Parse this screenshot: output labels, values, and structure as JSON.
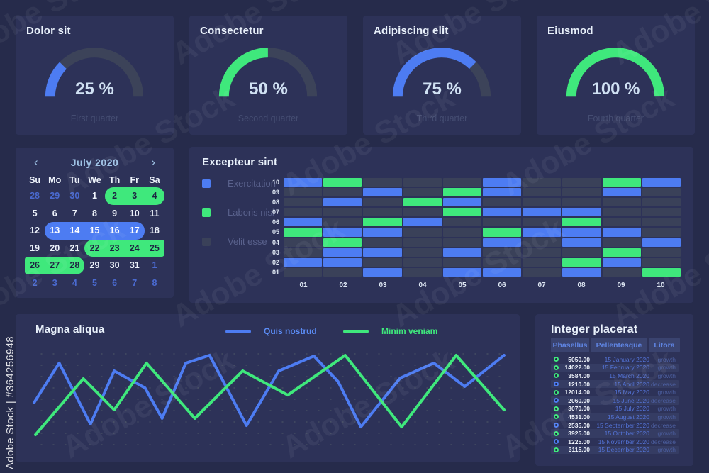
{
  "watermark": {
    "ribbon": "Adobe Stock | #364256948",
    "tile": "Adobe Stock"
  },
  "colors": {
    "blue": "#4d7cf2",
    "green": "#3fe87c",
    "gray": "#3a4159"
  },
  "gauges": [
    {
      "title": "Dolor sit",
      "percent": 25,
      "label": "25 %",
      "caption": "First quarter",
      "color": "#4d7cf2"
    },
    {
      "title": "Consectetur",
      "percent": 50,
      "label": "50 %",
      "caption": "Second quarter",
      "color": "#3fe87c"
    },
    {
      "title": "Adipiscing elit",
      "percent": 75,
      "label": "75 %",
      "caption": "Third quarter",
      "color": "#4d7cf2"
    },
    {
      "title": "Eiusmod",
      "percent": 100,
      "label": "100 %",
      "caption": "Fourth quarter",
      "color": "#3fe87c"
    }
  ],
  "calendar": {
    "month_label": "July 2020",
    "prev_icon": "‹",
    "next_icon": "›",
    "day_names": [
      "Su",
      "Mo",
      "Tu",
      "We",
      "Th",
      "Fr",
      "Sa"
    ],
    "weeks": [
      [
        {
          "v": "28",
          "k": "m"
        },
        {
          "v": "29",
          "k": "m"
        },
        {
          "v": "30",
          "k": "m"
        },
        {
          "v": "1",
          "k": "c"
        },
        {
          "v": "2",
          "k": "gs"
        },
        {
          "v": "3",
          "k": "gm"
        },
        {
          "v": "4",
          "k": "ge"
        }
      ],
      [
        {
          "v": "5",
          "k": "c"
        },
        {
          "v": "6",
          "k": "c"
        },
        {
          "v": "7",
          "k": "c"
        },
        {
          "v": "8",
          "k": "c"
        },
        {
          "v": "9",
          "k": "c"
        },
        {
          "v": "10",
          "k": "c"
        },
        {
          "v": "11",
          "k": "c"
        }
      ],
      [
        {
          "v": "12",
          "k": "c"
        },
        {
          "v": "13",
          "k": "bs"
        },
        {
          "v": "14",
          "k": "bm"
        },
        {
          "v": "15",
          "k": "bm"
        },
        {
          "v": "16",
          "k": "bm"
        },
        {
          "v": "17",
          "k": "be"
        },
        {
          "v": "18",
          "k": "c"
        }
      ],
      [
        {
          "v": "19",
          "k": "c"
        },
        {
          "v": "20",
          "k": "c"
        },
        {
          "v": "21",
          "k": "c"
        },
        {
          "v": "22",
          "k": "gs"
        },
        {
          "v": "23",
          "k": "gm"
        },
        {
          "v": "24",
          "k": "gm"
        },
        {
          "v": "25",
          "k": "gef"
        }
      ],
      [
        {
          "v": "26",
          "k": "gsf"
        },
        {
          "v": "27",
          "k": "gm"
        },
        {
          "v": "28",
          "k": "ge"
        },
        {
          "v": "29",
          "k": "c"
        },
        {
          "v": "30",
          "k": "c"
        },
        {
          "v": "31",
          "k": "c"
        },
        {
          "v": "1",
          "k": "m"
        }
      ],
      [
        {
          "v": "2",
          "k": "m"
        },
        {
          "v": "3",
          "k": "m"
        },
        {
          "v": "4",
          "k": "m"
        },
        {
          "v": "5",
          "k": "m"
        },
        {
          "v": "6",
          "k": "m"
        },
        {
          "v": "7",
          "k": "m"
        },
        {
          "v": "8",
          "k": "m"
        }
      ]
    ]
  },
  "gantt": {
    "title": "Excepteur sint",
    "legend": [
      {
        "label": "Exercitation",
        "color": "#4d7cf2"
      },
      {
        "label": "Laboris nisi",
        "color": "#3fe87c"
      },
      {
        "label": "Velit esse",
        "color": "#3a4159"
      }
    ],
    "row_labels": [
      "10",
      "09",
      "08",
      "07",
      "06",
      "05",
      "04",
      "03",
      "02",
      "01"
    ],
    "col_labels": [
      "01",
      "02",
      "03",
      "04",
      "05",
      "06",
      "07",
      "08",
      "09",
      "10"
    ],
    "cells": [
      [
        "b",
        "g",
        "x",
        "x",
        "x",
        "b",
        "x",
        "x",
        "g",
        "b"
      ],
      [
        "x",
        "x",
        "b",
        "x",
        "g",
        "b",
        "x",
        "x",
        "b",
        "x"
      ],
      [
        "x",
        "b",
        "x",
        "g",
        "b",
        "x",
        "x",
        "x",
        "x",
        "x"
      ],
      [
        "x",
        "x",
        "x",
        "x",
        "g",
        "b",
        "b",
        "b",
        "x",
        "x"
      ],
      [
        "b",
        "x",
        "g",
        "b",
        "x",
        "x",
        "x",
        "g",
        "x",
        "x"
      ],
      [
        "g",
        "b",
        "b",
        "x",
        "x",
        "g",
        "b",
        "b",
        "b",
        "x"
      ],
      [
        "x",
        "g",
        "x",
        "x",
        "x",
        "b",
        "x",
        "b",
        "x",
        "b"
      ],
      [
        "x",
        "b",
        "b",
        "x",
        "b",
        "x",
        "x",
        "x",
        "g",
        "x"
      ],
      [
        "b",
        "b",
        "x",
        "x",
        "x",
        "x",
        "x",
        "g",
        "b",
        "x"
      ],
      [
        "x",
        "x",
        "b",
        "x",
        "b",
        "b",
        "x",
        "b",
        "x",
        "g"
      ]
    ]
  },
  "line_chart": {
    "title": "Magna aliqua",
    "legend": [
      {
        "label": "Quis nostrud",
        "color": "#4d7cf2",
        "text_color": "#5b8cf5"
      },
      {
        "label": "Minim veniam",
        "color": "#3fe87c",
        "text_color": "#3fe87c"
      }
    ],
    "series": [
      {
        "name": "Quis nostrud",
        "color": "#4d7cf2",
        "points": [
          [
            0,
            53.5
          ],
          [
            5.3,
            17.4
          ],
          [
            11.9,
            72.9
          ],
          [
            16.9,
            24.5
          ],
          [
            23.4,
            40
          ],
          [
            27,
            67.7
          ],
          [
            32,
            17.4
          ],
          [
            37,
            10.3
          ],
          [
            44.8,
            74.2
          ],
          [
            51.6,
            24.5
          ],
          [
            59,
            11
          ],
          [
            64.1,
            34.2
          ],
          [
            68.9,
            75.5
          ],
          [
            77.2,
            31
          ],
          [
            84.3,
            17.4
          ],
          [
            90.8,
            38.7
          ],
          [
            99.1,
            10.3
          ]
        ]
      },
      {
        "name": "Minim veniam",
        "color": "#3fe87c",
        "points": [
          [
            0.3,
            82.6
          ],
          [
            10.4,
            31.6
          ],
          [
            16.9,
            60
          ],
          [
            23.7,
            17.4
          ],
          [
            33.9,
            67.7
          ],
          [
            44,
            24.5
          ],
          [
            53.5,
            46.5
          ],
          [
            65.6,
            10.3
          ],
          [
            77.5,
            75.5
          ],
          [
            89,
            10.3
          ],
          [
            99.1,
            60
          ]
        ]
      }
    ]
  },
  "table": {
    "title": "Integer placerat",
    "columns": [
      "Phasellus",
      "Pellentesque",
      "Litora"
    ],
    "rows": [
      {
        "trend": "up",
        "value": "5050.00",
        "date": "15 January 2020",
        "status": "growth"
      },
      {
        "trend": "up",
        "value": "14022.00",
        "date": "15 February 2020",
        "status": "growth"
      },
      {
        "trend": "up",
        "value": "3584.00",
        "date": "15 March 2020",
        "status": "growth"
      },
      {
        "trend": "down",
        "value": "1210.00",
        "date": "15 April 2020",
        "status": "decrease"
      },
      {
        "trend": "up",
        "value": "12014.00",
        "date": "15 May 2020",
        "status": "growth"
      },
      {
        "trend": "down",
        "value": "2060.00",
        "date": "15 June 2020",
        "status": "decrease"
      },
      {
        "trend": "up",
        "value": "3070.00",
        "date": "15 July 2020",
        "status": "growth"
      },
      {
        "trend": "up",
        "value": "4531.00",
        "date": "15 August 2020",
        "status": "growth"
      },
      {
        "trend": "down",
        "value": "2535.00",
        "date": "15 September 2020",
        "status": "decrease"
      },
      {
        "trend": "up",
        "value": "3925.00",
        "date": "15 October 2020",
        "status": "growth"
      },
      {
        "trend": "down",
        "value": "1225.00",
        "date": "15 November 2020",
        "status": "decrease"
      },
      {
        "trend": "up",
        "value": "3115.00",
        "date": "15 December 2020",
        "status": "growth"
      }
    ]
  }
}
